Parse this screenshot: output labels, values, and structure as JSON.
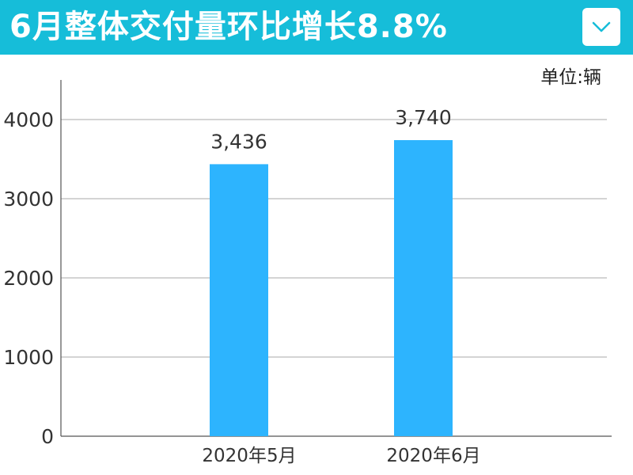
{
  "header": {
    "title": "6月整体交付量环比增长8.8%",
    "background_color": "#16bdd9",
    "dropdown_icon": "chevron-down-icon"
  },
  "chart_data": {
    "type": "bar",
    "title": "6月整体交付量环比增长8.8%",
    "unit_label": "单位:辆",
    "categories": [
      "2020年5月",
      "2020年6月"
    ],
    "values": [
      3436,
      3740
    ],
    "value_labels": [
      "3,436",
      "3,740"
    ],
    "yticks": [
      0,
      1000,
      2000,
      3000,
      4000
    ],
    "ylim": [
      0,
      4500
    ],
    "grid": true,
    "bar_color": "#2db4fe",
    "grid_color": "#aaaaaa"
  }
}
